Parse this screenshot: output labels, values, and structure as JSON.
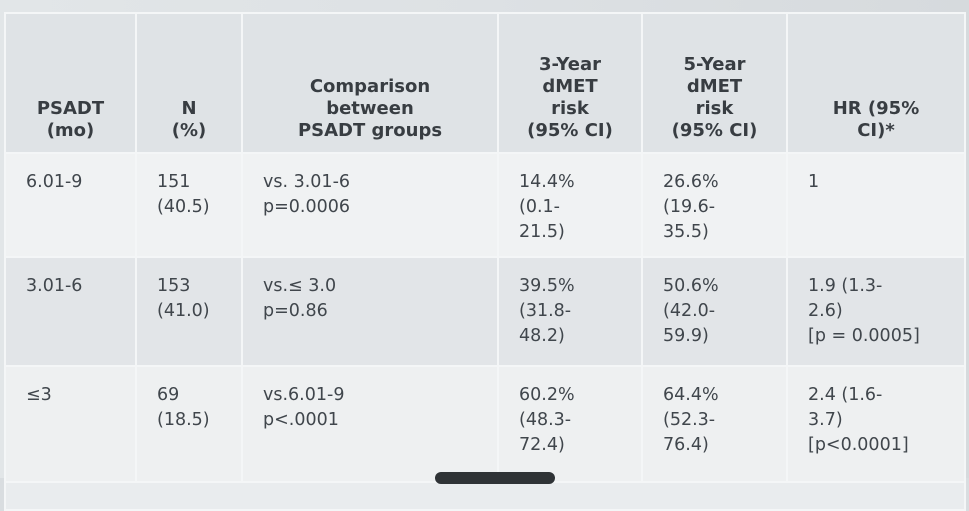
{
  "headers": [
    [
      "PSADT",
      "(mo)"
    ],
    [
      "N",
      "(%)"
    ],
    [
      "Comparison",
      "between",
      "PSADT groups"
    ],
    [
      "3-Year",
      "dMET",
      "risk",
      "(95% CI)"
    ],
    [
      "5-Year",
      "dMET",
      "risk",
      "(95% CI)"
    ],
    [
      "HR (95%",
      "CI)*"
    ]
  ],
  "rows": [
    {
      "psadt": "6.01-9",
      "n": [
        "151",
        "(40.5)"
      ],
      "comparison": [
        "vs. 3.01-6",
        "p=0.0006"
      ],
      "risk3": [
        "14.4%",
        "(0.1-",
        "21.5)"
      ],
      "risk5": [
        "26.6%",
        "(19.6-",
        "35.5)"
      ],
      "hr": [
        "1"
      ]
    },
    {
      "psadt": "3.01-6",
      "n": [
        "153",
        "(41.0)"
      ],
      "comparison": [
        "vs.≤ 3.0",
        "p=0.86"
      ],
      "risk3": [
        "39.5%",
        "(31.8-",
        "48.2)"
      ],
      "risk5": [
        "50.6%",
        "(42.0-",
        "59.9)"
      ],
      "hr": [
        "1.9 (1.3-",
        "2.6)",
        "[p = 0.0005]"
      ]
    },
    {
      "psadt": "≤3",
      "n": [
        "69",
        "(18.5)"
      ],
      "comparison": [
        "vs.6.01-9",
        "p<.0001"
      ],
      "risk3": [
        "60.2%",
        "(48.3-",
        "72.4)"
      ],
      "risk5": [
        "64.4%",
        "(52.3-",
        "76.4)"
      ],
      "hr": [
        "2.4 (1.6-",
        "3.7)",
        "[p<0.0001]"
      ]
    }
  ]
}
